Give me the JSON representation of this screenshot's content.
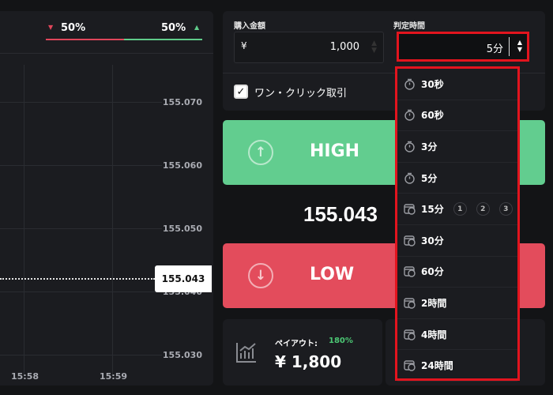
{
  "chart": {
    "sentiment": {
      "low_pct": "50%",
      "high_pct": "50%",
      "low_fraction": 0.5,
      "low_color": "#e0465a",
      "high_color": "#5fcb8a"
    },
    "y_ticks": [
      "155.070",
      "155.060",
      "155.050",
      "155.040",
      "155.030"
    ],
    "x_ticks": [
      "15:58",
      "15:59"
    ],
    "current_price": "155.043"
  },
  "order": {
    "amount_label": "購入金額",
    "currency": "¥",
    "amount_value": "1,000",
    "time_label": "判定時間",
    "time_value": "5分",
    "one_click_label": "ワン・クリック取引",
    "one_click_checked": true
  },
  "dropdown": {
    "items": [
      {
        "label": "30秒",
        "icon": "stopwatch-icon"
      },
      {
        "label": "60秒",
        "icon": "stopwatch-icon"
      },
      {
        "label": "3分",
        "icon": "stopwatch-icon"
      },
      {
        "label": "5分",
        "icon": "stopwatch-icon"
      },
      {
        "label": "15分",
        "icon": "calendar-clock-icon",
        "badges": [
          "1",
          "2",
          "3"
        ]
      },
      {
        "label": "30分",
        "icon": "calendar-clock-icon"
      },
      {
        "label": "60分",
        "icon": "calendar-clock-icon"
      },
      {
        "label": "2時間",
        "icon": "calendar-clock-icon"
      },
      {
        "label": "4時間",
        "icon": "calendar-clock-icon"
      },
      {
        "label": "24時間",
        "icon": "calendar-clock-icon"
      }
    ]
  },
  "trade": {
    "high_label": "HIGH",
    "low_label": "LOW",
    "price": "155.043",
    "high_color": "#62cd8f",
    "low_color": "#e34c5c"
  },
  "payout": {
    "label": "ペイアウト:",
    "rate": "180%",
    "amount": "¥ 1,800"
  }
}
